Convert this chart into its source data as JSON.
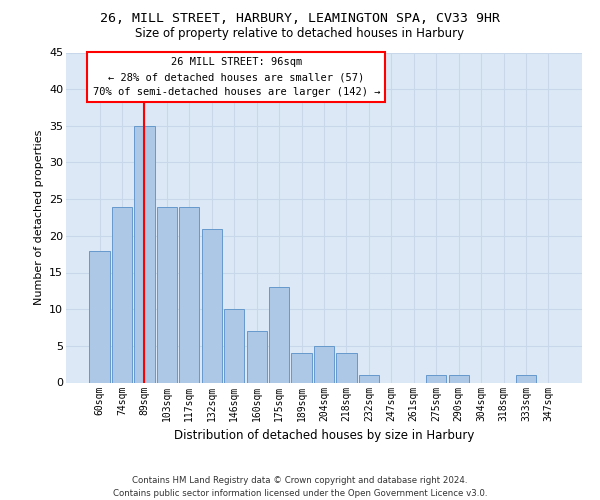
{
  "title1": "26, MILL STREET, HARBURY, LEAMINGTON SPA, CV33 9HR",
  "title2": "Size of property relative to detached houses in Harbury",
  "xlabel": "Distribution of detached houses by size in Harbury",
  "ylabel": "Number of detached properties",
  "categories": [
    "60sqm",
    "74sqm",
    "89sqm",
    "103sqm",
    "117sqm",
    "132sqm",
    "146sqm",
    "160sqm",
    "175sqm",
    "189sqm",
    "204sqm",
    "218sqm",
    "232sqm",
    "247sqm",
    "261sqm",
    "275sqm",
    "290sqm",
    "304sqm",
    "318sqm",
    "333sqm",
    "347sqm"
  ],
  "values": [
    18,
    24,
    35,
    24,
    24,
    21,
    10,
    7,
    13,
    4,
    5,
    4,
    1,
    0,
    0,
    1,
    1,
    0,
    0,
    1,
    0
  ],
  "bar_color": "#adc8e6",
  "bar_edgecolor": "#6699cc",
  "grid_color": "#c8d8ea",
  "bg_color": "#dce8f5",
  "property_bin_index": 2,
  "redline_label": "26 MILL STREET: 96sqm",
  "annotation_line1": "← 28% of detached houses are smaller (57)",
  "annotation_line2": "70% of semi-detached houses are larger (142) →",
  "footer1": "Contains HM Land Registry data © Crown copyright and database right 2024.",
  "footer2": "Contains public sector information licensed under the Open Government Licence v3.0.",
  "ylim": [
    0,
    45
  ],
  "yticks": [
    0,
    5,
    10,
    15,
    20,
    25,
    30,
    35,
    40,
    45
  ]
}
